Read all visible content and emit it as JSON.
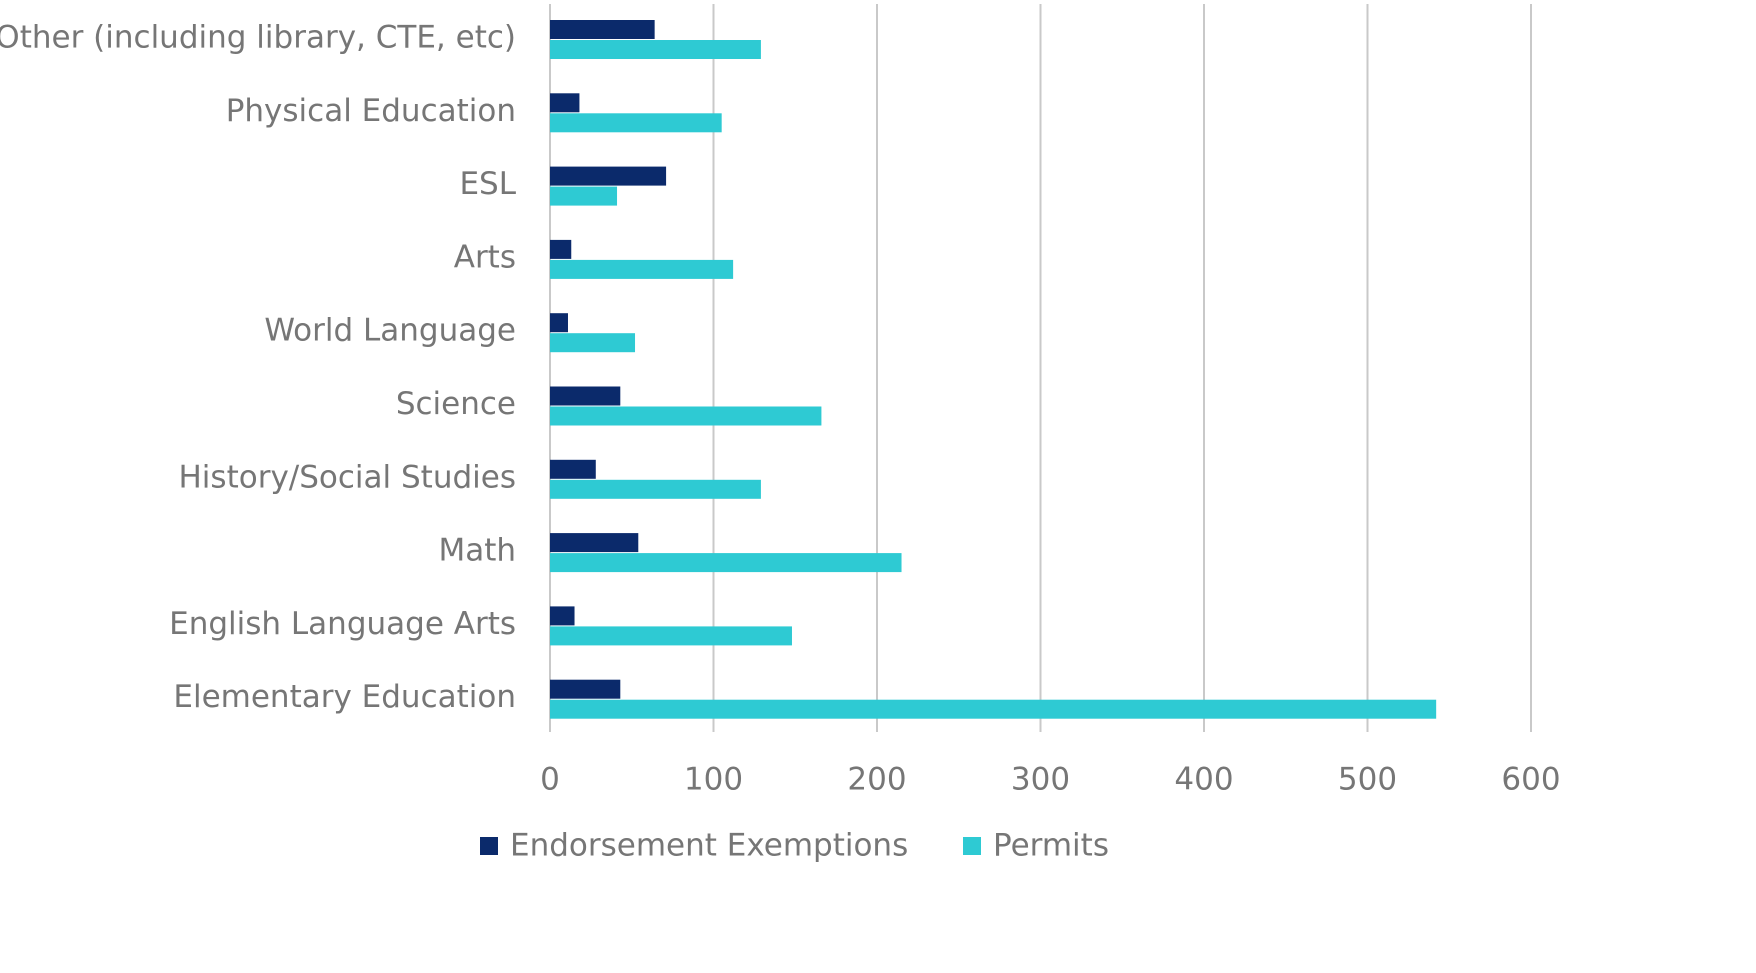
{
  "chart_data": {
    "type": "bar",
    "orientation": "horizontal",
    "categories": [
      "Other (including library, CTE, etc)",
      "Physical Education",
      "ESL",
      "Arts",
      "World Language",
      "Science",
      "History/Social Studies",
      "Math",
      "English Language Arts",
      "Elementary Education"
    ],
    "series": [
      {
        "name": "Endorsement Exemptions",
        "color": "#0b2a6b",
        "values": [
          64,
          18,
          71,
          13,
          11,
          43,
          28,
          54,
          15,
          43
        ]
      },
      {
        "name": "Permits",
        "color": "#2ecad3",
        "values": [
          129,
          105,
          41,
          112,
          52,
          166,
          129,
          215,
          148,
          542
        ]
      }
    ],
    "xlim": [
      0,
      600
    ],
    "xticks": [
      0,
      100,
      200,
      300,
      400,
      500,
      600
    ],
    "grid": true,
    "legend": "bottom"
  }
}
